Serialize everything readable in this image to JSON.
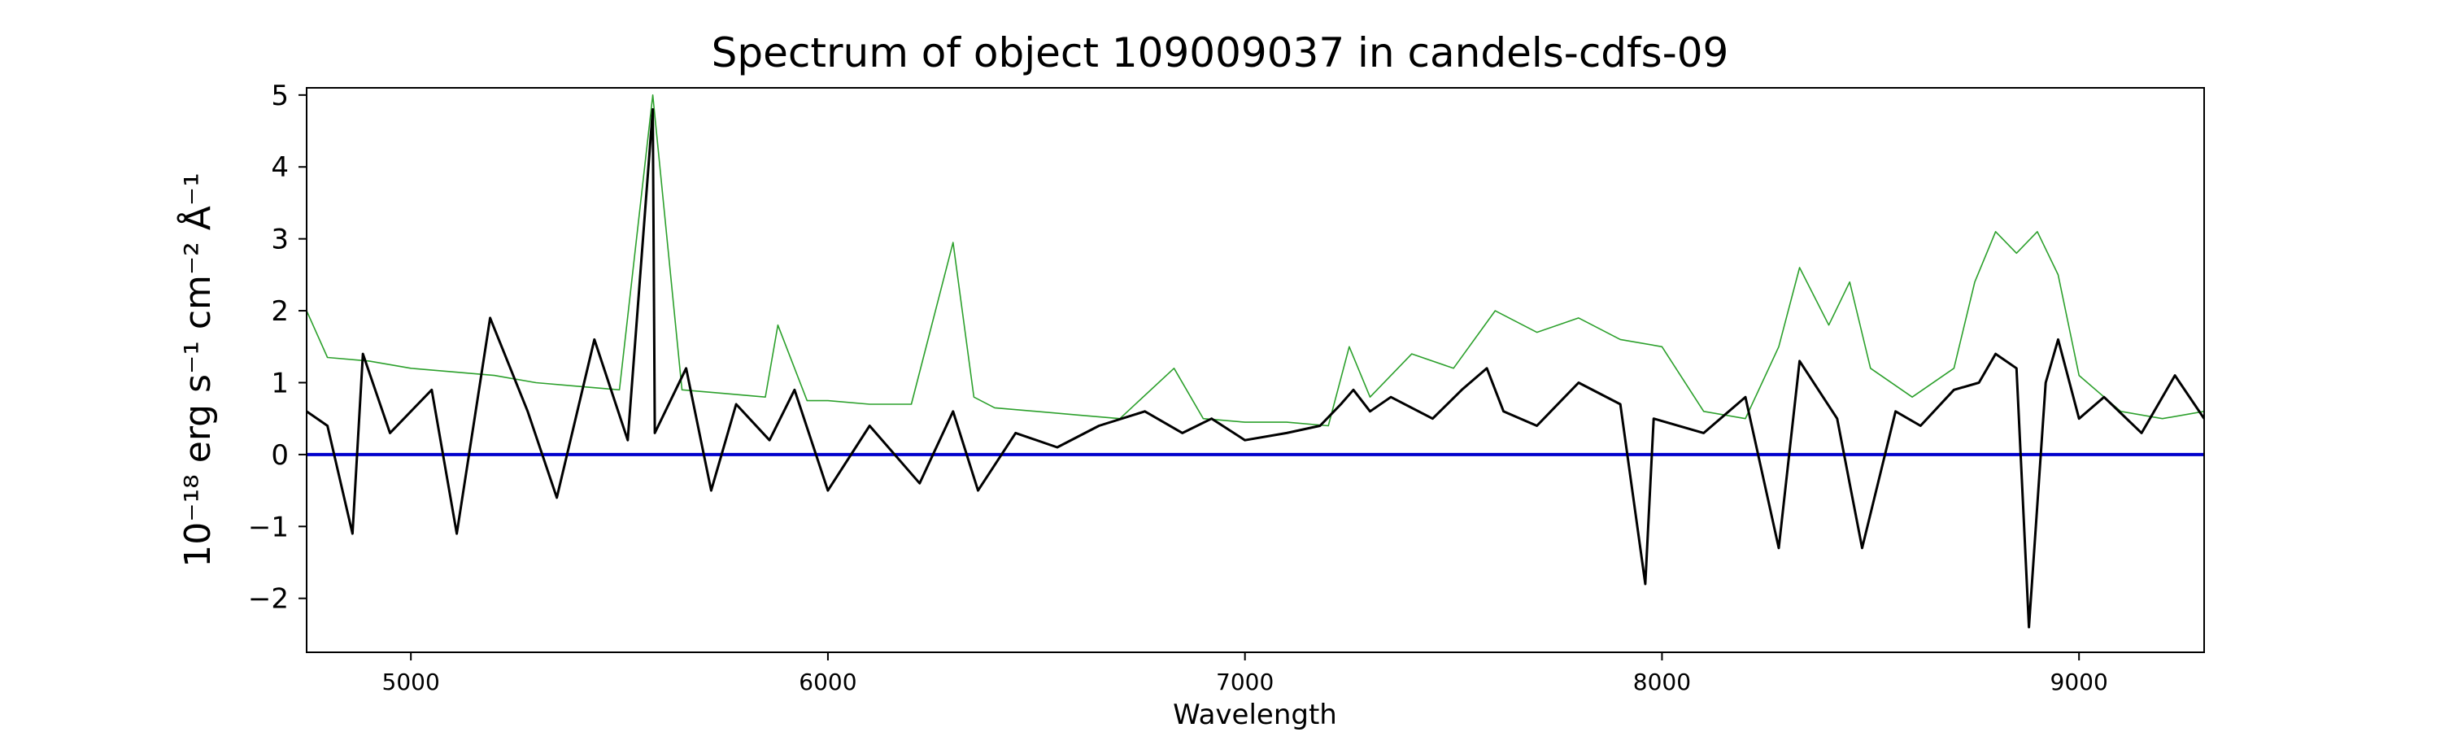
{
  "chart_data": {
    "type": "line",
    "title": "Spectrum of object 109009037 in candels-cdfs-09",
    "xlabel": "Wavelength",
    "ylabel": "10⁻¹⁸ erg s⁻¹ cm⁻² Å⁻¹",
    "xlim": [
      4750,
      9300
    ],
    "ylim": [
      -2.75,
      5.1
    ],
    "x_ticks": [
      5000,
      6000,
      7000,
      8000,
      9000
    ],
    "y_ticks": [
      -2,
      -1,
      0,
      1,
      2,
      3,
      4,
      5
    ],
    "grid": false,
    "legend": "none",
    "colors": {
      "flux": "#000000",
      "error": "#2ca02c",
      "zero": "#0000cc"
    },
    "series": [
      {
        "x": [
          4750,
          4800,
          4860,
          4885,
          4950,
          5050,
          5110,
          5190,
          5280,
          5350,
          5440,
          5520,
          5580,
          5585,
          5660,
          5720,
          5780,
          5860,
          5920,
          6000,
          6100,
          6220,
          6300,
          6360,
          6450,
          6550,
          6650,
          6760,
          6850,
          6920,
          7000,
          7100,
          7180,
          7230,
          7260,
          7300,
          7350,
          7450,
          7520,
          7580,
          7620,
          7700,
          7800,
          7900,
          7960,
          7980,
          8100,
          8200,
          8280,
          8330,
          8420,
          8480,
          8560,
          8620,
          8700,
          8760,
          8800,
          8850,
          8880,
          8920,
          8950,
          9000,
          9060,
          9150,
          9230,
          9300
        ],
        "values": [
          0.6,
          0.4,
          -1.1,
          1.4,
          0.3,
          0.9,
          -1.1,
          1.9,
          0.6,
          -0.6,
          1.6,
          0.2,
          4.8,
          0.3,
          1.2,
          -0.5,
          0.7,
          0.2,
          0.9,
          -0.5,
          0.4,
          -0.4,
          0.6,
          -0.5,
          0.3,
          0.1,
          0.4,
          0.6,
          0.3,
          0.5,
          0.2,
          0.3,
          0.4,
          0.7,
          0.9,
          0.6,
          0.8,
          0.5,
          0.9,
          1.2,
          0.6,
          0.4,
          1.0,
          0.7,
          -1.8,
          0.5,
          0.3,
          0.8,
          -1.3,
          1.3,
          0.5,
          -1.3,
          0.6,
          0.4,
          0.9,
          1.0,
          1.4,
          1.2,
          -2.4,
          1.0,
          1.6,
          0.5,
          0.8,
          0.3,
          1.1,
          0.5
        ]
      },
      {
        "x": [
          4750,
          4800,
          4900,
          5000,
          5100,
          5200,
          5300,
          5400,
          5500,
          5580,
          5650,
          5750,
          5850,
          5880,
          5950,
          6000,
          6100,
          6200,
          6300,
          6350,
          6400,
          6500,
          6600,
          6700,
          6830,
          6900,
          7000,
          7100,
          7200,
          7250,
          7300,
          7400,
          7500,
          7600,
          7700,
          7800,
          7900,
          8000,
          8100,
          8200,
          8280,
          8330,
          8400,
          8450,
          8500,
          8600,
          8700,
          8750,
          8800,
          8850,
          8900,
          8950,
          9000,
          9100,
          9200,
          9300
        ],
        "values": [
          2.0,
          1.35,
          1.3,
          1.2,
          1.15,
          1.1,
          1.0,
          0.95,
          0.9,
          5.0,
          0.9,
          0.85,
          0.8,
          1.8,
          0.75,
          0.75,
          0.7,
          0.7,
          2.95,
          0.8,
          0.65,
          0.6,
          0.55,
          0.5,
          1.2,
          0.5,
          0.45,
          0.45,
          0.4,
          1.5,
          0.8,
          1.4,
          1.2,
          2.0,
          1.7,
          1.9,
          1.6,
          1.5,
          0.6,
          0.5,
          1.5,
          2.6,
          1.8,
          2.4,
          1.2,
          0.8,
          1.2,
          2.4,
          3.1,
          2.8,
          3.1,
          2.5,
          1.1,
          0.6,
          0.5,
          0.6
        ]
      },
      {
        "x": [
          4750,
          9300
        ],
        "values": [
          0,
          0
        ]
      }
    ]
  }
}
